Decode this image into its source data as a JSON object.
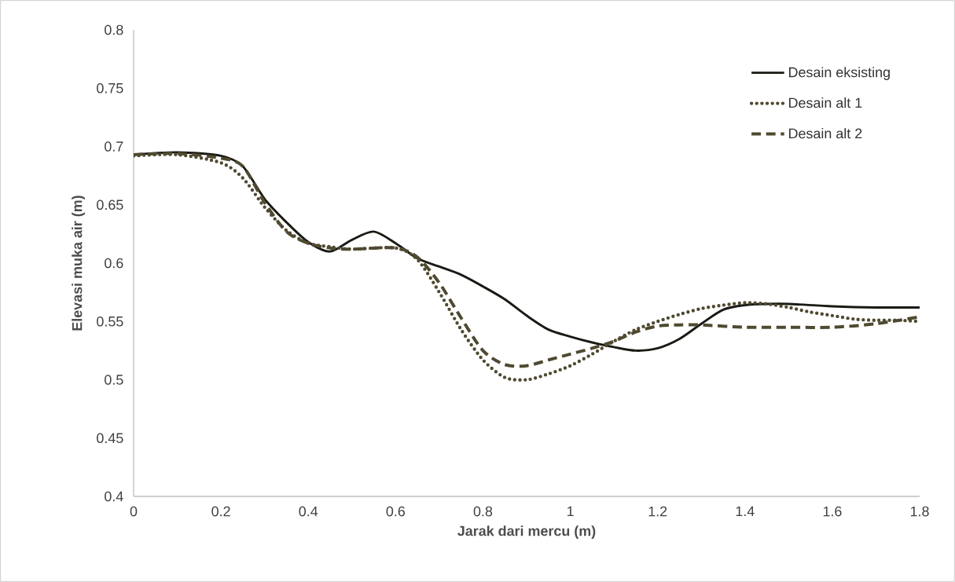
{
  "chart_data": {
    "type": "line",
    "xlabel": "Jarak dari mercu (m)",
    "ylabel": "Elevasi muka air (m)",
    "xlim": [
      0,
      1.8
    ],
    "xticks": [
      0,
      0.2,
      0.4,
      0.6,
      0.8,
      1,
      1.2,
      1.4,
      1.6,
      1.8
    ],
    "ylim": [
      0.4,
      0.8
    ],
    "yticks": [
      0.4,
      0.45,
      0.5,
      0.55,
      0.6,
      0.65,
      0.7,
      0.75,
      0.8
    ],
    "grid": false,
    "legend": "top right",
    "marker": "none",
    "series": [
      {
        "name": "Desain eksisting",
        "color": "#1a1a14",
        "line_style": "solid",
        "x": [
          0,
          0.1,
          0.2,
          0.25,
          0.3,
          0.35,
          0.4,
          0.45,
          0.5,
          0.55,
          0.6,
          0.65,
          0.7,
          0.75,
          0.8,
          0.85,
          0.9,
          0.95,
          1.0,
          1.05,
          1.1,
          1.15,
          1.2,
          1.25,
          1.3,
          1.35,
          1.4,
          1.45,
          1.5,
          1.6,
          1.7,
          1.8
        ],
        "values": [
          0.693,
          0.695,
          0.692,
          0.683,
          0.655,
          0.635,
          0.618,
          0.61,
          0.62,
          0.627,
          0.617,
          0.604,
          0.597,
          0.59,
          0.58,
          0.569,
          0.555,
          0.543,
          0.537,
          0.532,
          0.528,
          0.525,
          0.527,
          0.535,
          0.548,
          0.56,
          0.564,
          0.565,
          0.565,
          0.563,
          0.562,
          0.562
        ]
      },
      {
        "name": "Desain alt 1",
        "color": "#4f4a30",
        "line_style": "dotted",
        "x": [
          0,
          0.1,
          0.2,
          0.25,
          0.3,
          0.35,
          0.4,
          0.45,
          0.5,
          0.6,
          0.65,
          0.7,
          0.75,
          0.8,
          0.85,
          0.9,
          0.95,
          1.0,
          1.05,
          1.1,
          1.15,
          1.2,
          1.25,
          1.3,
          1.35,
          1.4,
          1.45,
          1.5,
          1.55,
          1.6,
          1.65,
          1.7,
          1.75,
          1.8
        ],
        "values": [
          0.692,
          0.693,
          0.686,
          0.673,
          0.648,
          0.628,
          0.617,
          0.614,
          0.612,
          0.613,
          0.603,
          0.575,
          0.543,
          0.517,
          0.502,
          0.5,
          0.505,
          0.512,
          0.522,
          0.533,
          0.543,
          0.55,
          0.556,
          0.561,
          0.564,
          0.566,
          0.565,
          0.562,
          0.558,
          0.555,
          0.552,
          0.551,
          0.551,
          0.55
        ]
      },
      {
        "name": "Desain alt 2",
        "color": "#4f4a30",
        "line_style": "dashed",
        "x": [
          0,
          0.1,
          0.2,
          0.25,
          0.3,
          0.35,
          0.4,
          0.45,
          0.5,
          0.6,
          0.65,
          0.7,
          0.75,
          0.8,
          0.85,
          0.9,
          0.95,
          1.0,
          1.05,
          1.1,
          1.15,
          1.2,
          1.25,
          1.3,
          1.4,
          1.5,
          1.6,
          1.7,
          1.8
        ],
        "values": [
          0.693,
          0.694,
          0.69,
          0.683,
          0.652,
          0.627,
          0.617,
          0.613,
          0.612,
          0.613,
          0.605,
          0.583,
          0.553,
          0.525,
          0.513,
          0.512,
          0.517,
          0.522,
          0.527,
          0.533,
          0.541,
          0.546,
          0.547,
          0.547,
          0.545,
          0.545,
          0.545,
          0.548,
          0.554
        ]
      }
    ]
  }
}
